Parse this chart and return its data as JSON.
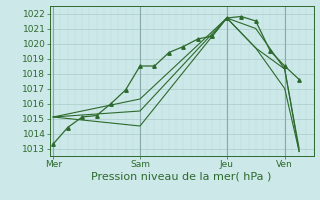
{
  "xlabel": "Pression niveau de la mer( hPa )",
  "bg_color": "#cce8e8",
  "grid_color_major": "#aacccc",
  "grid_color_minor": "#bbdddd",
  "line_color": "#2d6a2d",
  "ylim": [
    1012.5,
    1022.5
  ],
  "yticks": [
    1013,
    1014,
    1015,
    1016,
    1017,
    1018,
    1019,
    1020,
    1021,
    1022
  ],
  "xtick_labels": [
    "Mer",
    "Sam",
    "Jeu",
    "Ven"
  ],
  "xtick_positions": [
    0,
    24,
    48,
    64
  ],
  "xlim": [
    -1,
    72
  ],
  "vline_positions": [
    0,
    24,
    48,
    64
  ],
  "line1_x": [
    0,
    4,
    8,
    12,
    16,
    20,
    24,
    28,
    32,
    36,
    40,
    44,
    48,
    52,
    56,
    60,
    64,
    68
  ],
  "line1_y": [
    1013.3,
    1014.4,
    1015.1,
    1015.2,
    1016.0,
    1016.9,
    1018.5,
    1018.5,
    1019.4,
    1019.8,
    1020.3,
    1020.5,
    1021.7,
    1021.8,
    1021.5,
    1019.5,
    1018.5,
    1017.6
  ],
  "line2_x": [
    0,
    24,
    48,
    56,
    64,
    68
  ],
  "line2_y": [
    1015.1,
    1015.5,
    1021.7,
    1019.7,
    1018.3,
    1012.8
  ],
  "line3_x": [
    0,
    24,
    48,
    56,
    64,
    68
  ],
  "line3_y": [
    1015.1,
    1016.3,
    1021.7,
    1021.0,
    1018.3,
    1013.0
  ],
  "line4_x": [
    0,
    24,
    48,
    56,
    64,
    68
  ],
  "line4_y": [
    1015.1,
    1014.5,
    1021.7,
    1019.7,
    1017.0,
    1012.8
  ],
  "xlabel_fontsize": 8,
  "tick_fontsize": 6.5
}
